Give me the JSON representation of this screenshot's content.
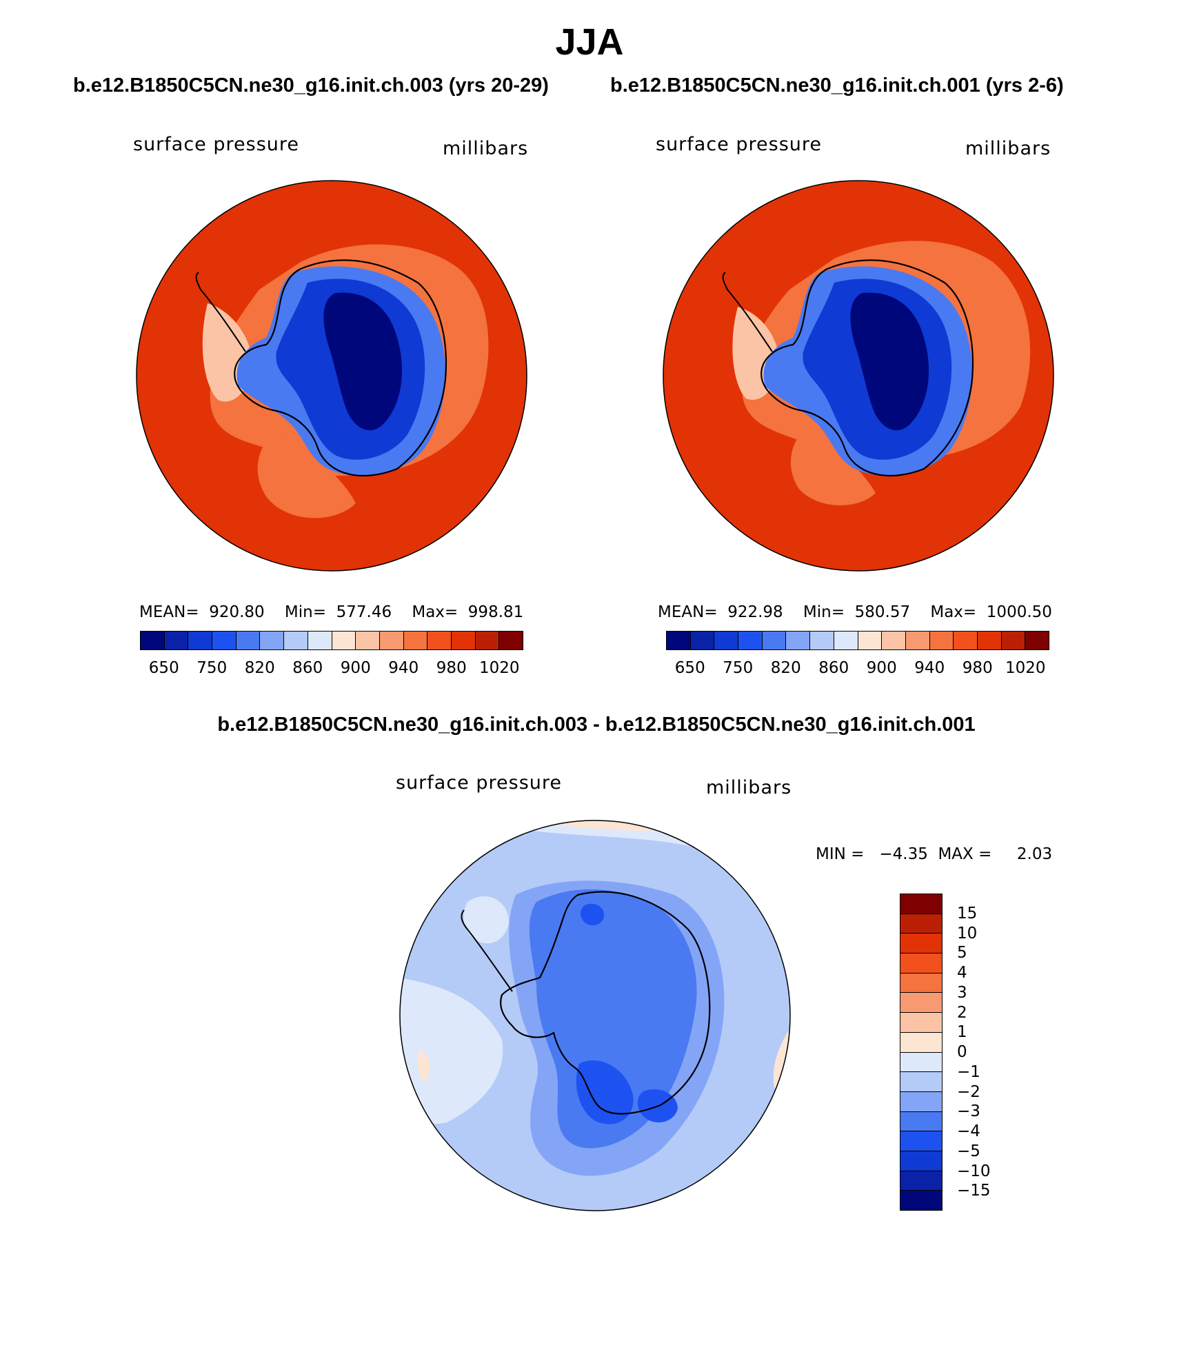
{
  "figure": {
    "title": "JJA"
  },
  "panels": [
    {
      "run_title": "b.e12.B1850C5CN.ne30_g16.init.ch.003 (yrs 20-29)",
      "left_label": "surface pressure",
      "right_label": "millibars",
      "stats": "MEAN=  920.80    Min=  577.46    Max=  998.81"
    },
    {
      "run_title": "b.e12.B1850C5CN.ne30_g16.init.ch.001 (yrs 2-6)",
      "left_label": "surface pressure",
      "right_label": "millibars",
      "stats": "MEAN=  922.98    Min=  580.57    Max=  1000.50"
    }
  ],
  "difference": {
    "title": "b.e12.B1850C5CN.ne30_g16.init.ch.003 - b.e12.B1850C5CN.ne30_g16.init.ch.001",
    "left_label": "surface pressure",
    "right_label": "millibars",
    "stats": "MIN =   −4.35  MAX =     2.03"
  },
  "colorbar_abs": {
    "colors": [
      "#00077a",
      "#0a22a8",
      "#0f3ad4",
      "#1e52f0",
      "#4a7af2",
      "#84a5f6",
      "#b4cbf8",
      "#dde9fb",
      "#fde5d3",
      "#fbc4a6",
      "#f79a72",
      "#f4733f",
      "#f2511e",
      "#e23306",
      "#bb2004",
      "#7f0000"
    ],
    "tick_labels": [
      "650",
      "750",
      "820",
      "860",
      "900",
      "940",
      "980",
      "1020"
    ]
  },
  "colorbar_diff": {
    "colors_top_to_bottom": [
      "#7f0000",
      "#bb2004",
      "#e23306",
      "#f2511e",
      "#f4733f",
      "#f79a72",
      "#fbc4a6",
      "#fde5d3",
      "#dde9fb",
      "#b4cbf8",
      "#84a5f6",
      "#4a7af2",
      "#1e52f0",
      "#0f3ad4",
      "#0a22a8",
      "#00077a"
    ],
    "tick_labels": [
      "15",
      "10",
      "5",
      "4",
      "3",
      "2",
      "1",
      "0",
      "−1",
      "−2",
      "−3",
      "−4",
      "−5",
      "−10",
      "−15"
    ]
  },
  "map_colors": {
    "ocean_abs": "#e23306",
    "deep_blue": "#00077a",
    "mid_blue": "#0f3ad4",
    "light_blue": "#4a7af2",
    "pale_blue": "#b4cbf8",
    "warm_ring": "#f4733f",
    "diff_base": "#b4cbf8",
    "diff_light": "#dde9fb",
    "diff_mid": "#84a5f6",
    "diff_dark": "#4a7af2",
    "diff_darker": "#1e52f0",
    "diff_warm": "#fde5d3"
  }
}
